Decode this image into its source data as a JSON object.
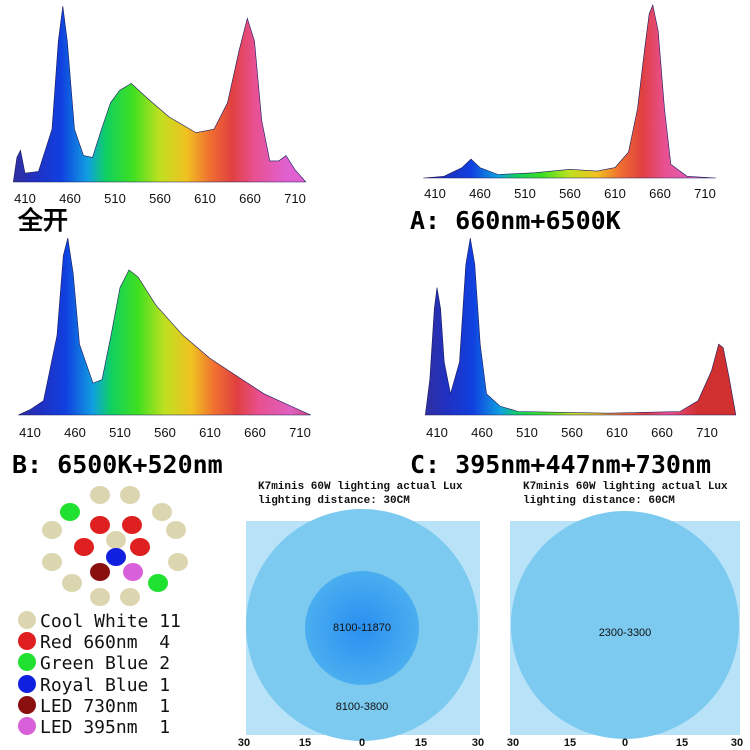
{
  "chart_data": [
    {
      "type": "area",
      "title": "全开",
      "x_ticks": [
        410,
        460,
        510,
        560,
        610,
        660,
        710
      ],
      "xlim": [
        397,
        722
      ],
      "points": [
        [
          397,
          0
        ],
        [
          401,
          0.14
        ],
        [
          405,
          0.18
        ],
        [
          410,
          0.05
        ],
        [
          425,
          0.06
        ],
        [
          440,
          0.3
        ],
        [
          447,
          0.8
        ],
        [
          452,
          1.0
        ],
        [
          457,
          0.8
        ],
        [
          465,
          0.3
        ],
        [
          475,
          0.15
        ],
        [
          485,
          0.14
        ],
        [
          495,
          0.3
        ],
        [
          505,
          0.45
        ],
        [
          515,
          0.52
        ],
        [
          528,
          0.56
        ],
        [
          545,
          0.48
        ],
        [
          570,
          0.37
        ],
        [
          600,
          0.28
        ],
        [
          620,
          0.3
        ],
        [
          635,
          0.45
        ],
        [
          648,
          0.75
        ],
        [
          657,
          0.93
        ],
        [
          665,
          0.8
        ],
        [
          673,
          0.35
        ],
        [
          682,
          0.12
        ],
        [
          692,
          0.12
        ],
        [
          700,
          0.15
        ],
        [
          710,
          0.07
        ],
        [
          722,
          0
        ]
      ]
    },
    {
      "type": "area",
      "title": "A: 660nm+6500K",
      "x_ticks": [
        410,
        460,
        510,
        560,
        610,
        660,
        710
      ],
      "xlim": [
        397,
        722
      ],
      "points": [
        [
          397,
          0
        ],
        [
          420,
          0.01
        ],
        [
          440,
          0.06
        ],
        [
          450,
          0.11
        ],
        [
          460,
          0.06
        ],
        [
          480,
          0.02
        ],
        [
          520,
          0.03
        ],
        [
          560,
          0.05
        ],
        [
          590,
          0.04
        ],
        [
          610,
          0.06
        ],
        [
          625,
          0.15
        ],
        [
          635,
          0.4
        ],
        [
          643,
          0.75
        ],
        [
          648,
          0.95
        ],
        [
          652,
          1.0
        ],
        [
          658,
          0.85
        ],
        [
          665,
          0.4
        ],
        [
          672,
          0.08
        ],
        [
          690,
          0.01
        ],
        [
          722,
          0
        ]
      ]
    },
    {
      "type": "area",
      "title": "B: 6500K+520nm",
      "x_ticks": [
        410,
        460,
        510,
        560,
        610,
        660,
        710
      ],
      "xlim": [
        397,
        722
      ],
      "points": [
        [
          397,
          0
        ],
        [
          410,
          0.03
        ],
        [
          425,
          0.08
        ],
        [
          440,
          0.45
        ],
        [
          447,
          0.9
        ],
        [
          452,
          1.0
        ],
        [
          458,
          0.8
        ],
        [
          465,
          0.4
        ],
        [
          480,
          0.18
        ],
        [
          490,
          0.2
        ],
        [
          500,
          0.45
        ],
        [
          510,
          0.72
        ],
        [
          520,
          0.82
        ],
        [
          530,
          0.78
        ],
        [
          550,
          0.62
        ],
        [
          580,
          0.45
        ],
        [
          610,
          0.32
        ],
        [
          640,
          0.22
        ],
        [
          670,
          0.12
        ],
        [
          700,
          0.05
        ],
        [
          722,
          0
        ]
      ]
    },
    {
      "type": "area",
      "title": "C: 395nm+447nm+730nm",
      "x_ticks": [
        410,
        460,
        510,
        560,
        610,
        660,
        710
      ],
      "xlim": [
        397,
        722
      ],
      "points": [
        [
          397,
          0
        ],
        [
          402,
          0.2
        ],
        [
          407,
          0.6
        ],
        [
          410,
          0.72
        ],
        [
          414,
          0.6
        ],
        [
          418,
          0.3
        ],
        [
          425,
          0.12
        ],
        [
          435,
          0.3
        ],
        [
          442,
          0.85
        ],
        [
          447,
          1.0
        ],
        [
          452,
          0.85
        ],
        [
          458,
          0.4
        ],
        [
          465,
          0.12
        ],
        [
          480,
          0.05
        ],
        [
          500,
          0.02
        ],
        [
          600,
          0.01
        ],
        [
          680,
          0.02
        ],
        [
          700,
          0.08
        ],
        [
          715,
          0.25
        ],
        [
          723,
          0.4
        ],
        [
          728,
          0.38
        ],
        [
          735,
          0.2
        ],
        [
          742,
          0
        ]
      ]
    },
    {
      "type": "table",
      "title": "K7minis 60W lighting actual Lux",
      "subtitle": "lighting distance: 30CM",
      "inner_zone": "8100-11870",
      "outer_zone": "8100-3800",
      "axis_ticks": [
        "30",
        "15",
        "0",
        "15",
        "30"
      ]
    },
    {
      "type": "table",
      "title": "K7minis 60W lighting actual Lux",
      "subtitle": "lighting distance: 60CM",
      "inner_zone": "2300-3300",
      "axis_ticks": [
        "30",
        "15",
        "0",
        "15",
        "30"
      ]
    }
  ],
  "legend": [
    {
      "label": "Cool White 11",
      "color": "#dcd6b0"
    },
    {
      "label": "Red 660nm  4",
      "color": "#e02020"
    },
    {
      "label": "Green Blue 2",
      "color": "#20e030"
    },
    {
      "label": "Royal Blue 1",
      "color": "#1020e0"
    },
    {
      "label": "LED 730nm  1",
      "color": "#8a1010"
    },
    {
      "label": "LED 395nm  1",
      "color": "#d860d8"
    }
  ]
}
